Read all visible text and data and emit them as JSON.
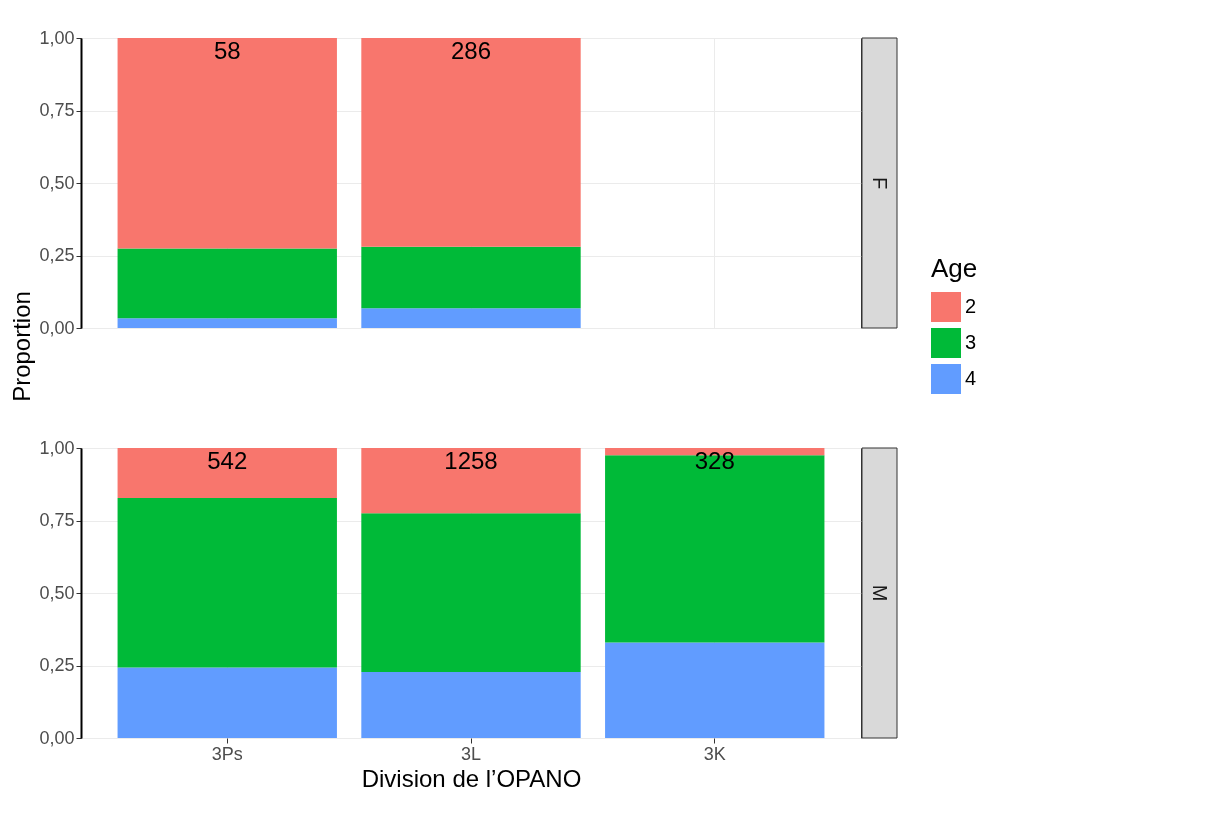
{
  "chart_data": [
    {
      "type": "bar",
      "stacked": true,
      "title": "F",
      "ylabel": "Proportion",
      "legend_title": "Age",
      "legend": "right",
      "grid": true,
      "tick_labels": "y",
      "categories": [
        "3Ps",
        "3L",
        "3K"
      ],
      "series": [
        {
          "name": "4",
          "color": "#619cff",
          "values": [
            0.034,
            0.068,
            null
          ]
        },
        {
          "name": "3",
          "color": "#00ba38",
          "values": [
            0.24,
            0.212,
            null
          ]
        },
        {
          "name": "2",
          "color": "#f8766d",
          "values": [
            0.726,
            0.72,
            null
          ]
        }
      ],
      "ylim": [
        0,
        1
      ],
      "yticks": [
        {
          "value": 0,
          "label": "0,00"
        },
        {
          "value": 0.25,
          "label": "0,25"
        },
        {
          "value": 0.5,
          "label": "0,50"
        },
        {
          "value": 0.75,
          "label": "0,75"
        },
        {
          "value": 1,
          "label": "1,00"
        }
      ],
      "annotations": [
        {
          "text": "58",
          "x": "3Ps",
          "y": 1
        },
        {
          "text": "286",
          "x": "3L",
          "y": 1
        }
      ]
    },
    {
      "type": "bar",
      "stacked": true,
      "title": "M",
      "xlabel": "Division de l’OPANO",
      "grid": true,
      "categories": [
        "3Ps",
        "3L",
        "3K"
      ],
      "series": [
        {
          "name": "4",
          "color": "#619cff",
          "values": [
            0.243,
            0.228,
            0.329
          ]
        },
        {
          "name": "3",
          "color": "#00ba38",
          "values": [
            0.585,
            0.547,
            0.646
          ]
        },
        {
          "name": "2",
          "color": "#f8766d",
          "values": [
            0.172,
            0.225,
            0.025
          ]
        }
      ],
      "ylim": [
        0,
        1
      ],
      "yticks": [
        {
          "value": 0,
          "label": "0,00"
        },
        {
          "value": 0.25,
          "label": "0,25"
        },
        {
          "value": 0.5,
          "label": "0,50"
        },
        {
          "value": 0.75,
          "label": "0,75"
        },
        {
          "value": 1,
          "label": "1,00"
        }
      ],
      "annotations": [
        {
          "text": "542",
          "x": "3Ps",
          "y": 1
        },
        {
          "text": "1258",
          "x": "3L",
          "y": 1
        },
        {
          "text": "328",
          "x": "3K",
          "y": 1
        }
      ]
    }
  ]
}
